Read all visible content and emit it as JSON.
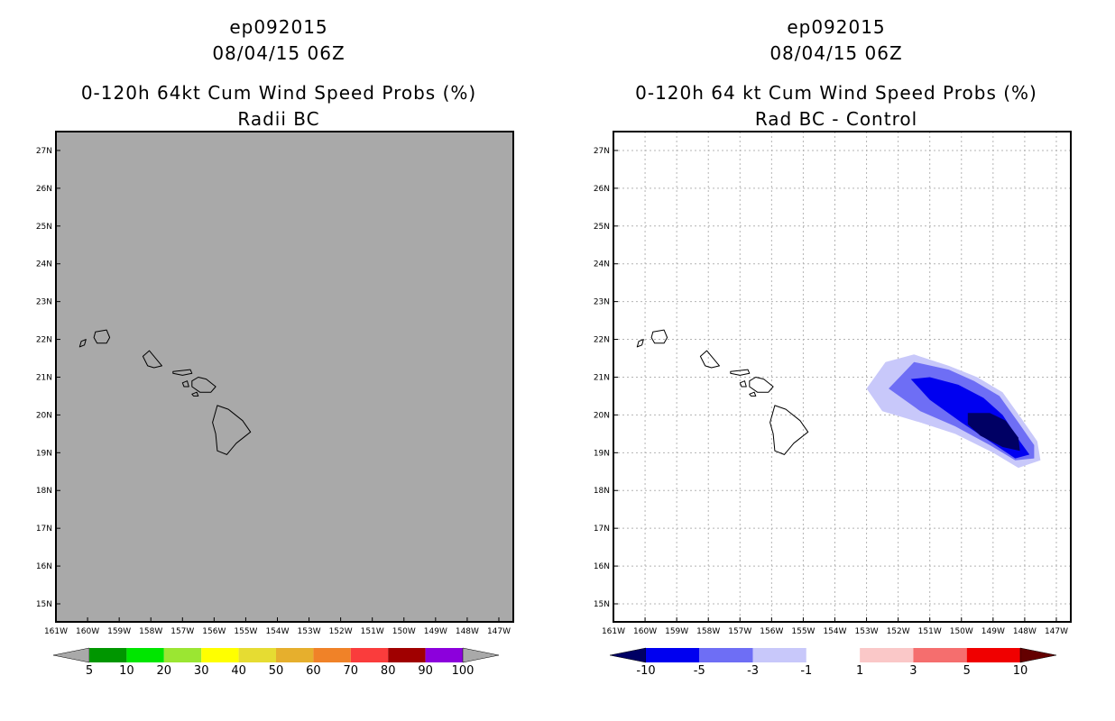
{
  "left_panel": {
    "storm_id": "ep092015",
    "datetime": "08/04/15 06Z",
    "product": "0-120h 64kt Cum Wind Speed Probs (%)",
    "variant": "Radii BC",
    "field_color": "#a9a9a9",
    "colorbar": {
      "labels": [
        "5",
        "10",
        "20",
        "30",
        "40",
        "50",
        "60",
        "70",
        "80",
        "90",
        "100"
      ],
      "colors": [
        "#a9a9a9",
        "#009600",
        "#00e600",
        "#9be632",
        "#ffff00",
        "#e6dc32",
        "#e6af2d",
        "#f08228",
        "#fa3c3c",
        "#a00000",
        "#8c00dc",
        "#a9a9a9"
      ]
    }
  },
  "right_panel": {
    "storm_id": "ep092015",
    "datetime": "08/04/15 06Z",
    "product": "0-120h 64 kt Cum Wind Speed Probs (%)",
    "variant": "Rad BC - Control",
    "colorbar": {
      "labels": [
        "-10",
        "-5",
        "-3",
        "-1",
        "1",
        "3",
        "5",
        "10"
      ],
      "colors": [
        "#000064",
        "#0000f0",
        "#6e6ef5",
        "#c8c8fa",
        "#ffffff",
        "#fac8c8",
        "#f56e6e",
        "#f00000",
        "#640000"
      ]
    }
  },
  "axes": {
    "lat_labels": [
      "15N",
      "16N",
      "17N",
      "18N",
      "19N",
      "20N",
      "21N",
      "22N",
      "23N",
      "24N",
      "25N",
      "26N",
      "27N"
    ],
    "lon_labels": [
      "161W",
      "160W",
      "159W",
      "158W",
      "157W",
      "156W",
      "155W",
      "154W",
      "153W",
      "152W",
      "151W",
      "150W",
      "149W",
      "148W",
      "147W"
    ]
  }
}
